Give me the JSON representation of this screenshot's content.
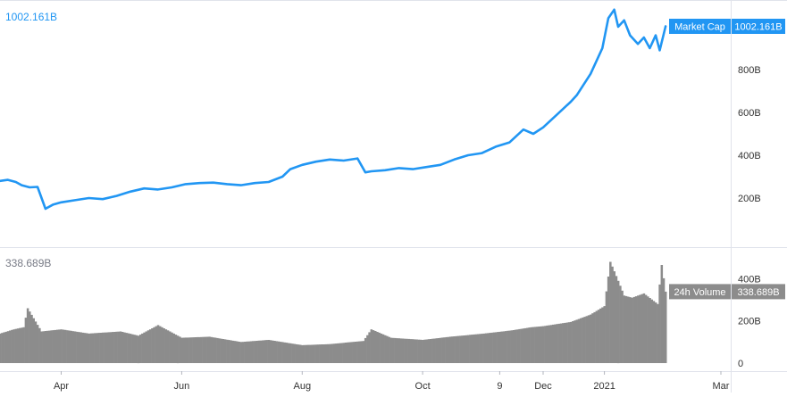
{
  "chart_data": [
    {
      "type": "line",
      "series": [
        {
          "name": "Market Cap",
          "color": "#2196f3",
          "x": [
            "2020-03-01",
            "2020-03-05",
            "2020-03-09",
            "2020-03-12",
            "2020-03-16",
            "2020-03-20",
            "2020-03-24",
            "2020-03-28",
            "2020-04-01",
            "2020-04-08",
            "2020-04-15",
            "2020-04-22",
            "2020-04-29",
            "2020-05-06",
            "2020-05-13",
            "2020-05-20",
            "2020-05-27",
            "2020-06-03",
            "2020-06-10",
            "2020-06-17",
            "2020-06-24",
            "2020-07-01",
            "2020-07-08",
            "2020-07-15",
            "2020-07-22",
            "2020-07-26",
            "2020-08-01",
            "2020-08-08",
            "2020-08-15",
            "2020-08-22",
            "2020-08-29",
            "2020-09-02",
            "2020-09-05",
            "2020-09-12",
            "2020-09-19",
            "2020-09-26",
            "2020-10-03",
            "2020-10-10",
            "2020-10-17",
            "2020-10-24",
            "2020-10-31",
            "2020-11-07",
            "2020-11-14",
            "2020-11-21",
            "2020-11-26",
            "2020-12-01",
            "2020-12-08",
            "2020-12-15",
            "2020-12-18",
            "2020-12-25",
            "2020-12-31",
            "2021-01-03",
            "2021-01-06",
            "2021-01-08",
            "2021-01-11",
            "2021-01-14",
            "2021-01-18",
            "2021-01-21",
            "2021-01-24",
            "2021-01-27",
            "2021-01-29",
            "2021-02-01"
          ],
          "y": [
            280,
            285,
            275,
            260,
            250,
            252,
            150,
            170,
            180,
            190,
            200,
            195,
            210,
            230,
            245,
            240,
            250,
            265,
            270,
            272,
            265,
            260,
            270,
            275,
            300,
            335,
            355,
            370,
            380,
            375,
            385,
            320,
            325,
            330,
            340,
            335,
            345,
            355,
            380,
            400,
            410,
            440,
            460,
            520,
            500,
            530,
            590,
            650,
            680,
            780,
            900,
            1040,
            1080,
            1000,
            1030,
            960,
            920,
            950,
            900,
            960,
            890,
            1002.161
          ]
        }
      ],
      "ylim": [
        0,
        1100
      ],
      "yticks": [
        200,
        400,
        600,
        800
      ],
      "ytick_labels": [
        "200B",
        "400B",
        "600B",
        "800B"
      ],
      "last_value_label": "1002.161B",
      "top_left_value_label": "1002.161B",
      "badge_label": "Market Cap",
      "grid": false
    },
    {
      "type": "bar",
      "series": [
        {
          "name": "24h Volume",
          "color": "#8c8c8c",
          "x": [
            "2020-03-01",
            "2020-03-08",
            "2020-03-13",
            "2020-03-15",
            "2020-03-22",
            "2020-04-01",
            "2020-04-15",
            "2020-05-01",
            "2020-05-10",
            "2020-05-20",
            "2020-06-01",
            "2020-06-15",
            "2020-07-01",
            "2020-07-15",
            "2020-08-01",
            "2020-08-15",
            "2020-09-01",
            "2020-09-05",
            "2020-09-15",
            "2020-10-01",
            "2020-10-15",
            "2020-11-01",
            "2020-11-15",
            "2020-11-25",
            "2020-12-01",
            "2020-12-15",
            "2020-12-25",
            "2021-01-01",
            "2021-01-04",
            "2021-01-08",
            "2021-01-11",
            "2021-01-15",
            "2021-01-21",
            "2021-01-28",
            "2021-01-30",
            "2021-02-01"
          ],
          "y": [
            140,
            160,
            170,
            260,
            150,
            160,
            140,
            150,
            130,
            180,
            120,
            125,
            100,
            110,
            85,
            90,
            105,
            160,
            120,
            110,
            125,
            140,
            155,
            170,
            175,
            195,
            230,
            270,
            480,
            390,
            320,
            310,
            330,
            280,
            465,
            338.689
          ]
        }
      ],
      "ylim": [
        0,
        520
      ],
      "yticks": [
        0,
        200,
        400
      ],
      "ytick_labels": [
        "0",
        "200B",
        "400B"
      ],
      "last_value_label": "338.689B",
      "top_left_value_label": "338.689B",
      "badge_label": "24h Volume",
      "grid": false
    }
  ],
  "x_axis": {
    "range": [
      "2020-03-01",
      "2021-03-01"
    ],
    "ticks": [
      {
        "date": "2020-04-01",
        "label": "Apr"
      },
      {
        "date": "2020-06-01",
        "label": "Jun"
      },
      {
        "date": "2020-08-01",
        "label": "Aug"
      },
      {
        "date": "2020-10-01",
        "label": "Oct"
      },
      {
        "date": "2020-11-09",
        "label": "9"
      },
      {
        "date": "2020-12-01",
        "label": "Dec"
      },
      {
        "date": "2021-01-01",
        "label": "2021"
      },
      {
        "date": "2021-03-01",
        "label": "Mar"
      }
    ]
  },
  "colors": {
    "line": "#2196f3",
    "volume": "#8c8c8c",
    "axis_text": "#333333",
    "border": "#e0e3eb"
  }
}
